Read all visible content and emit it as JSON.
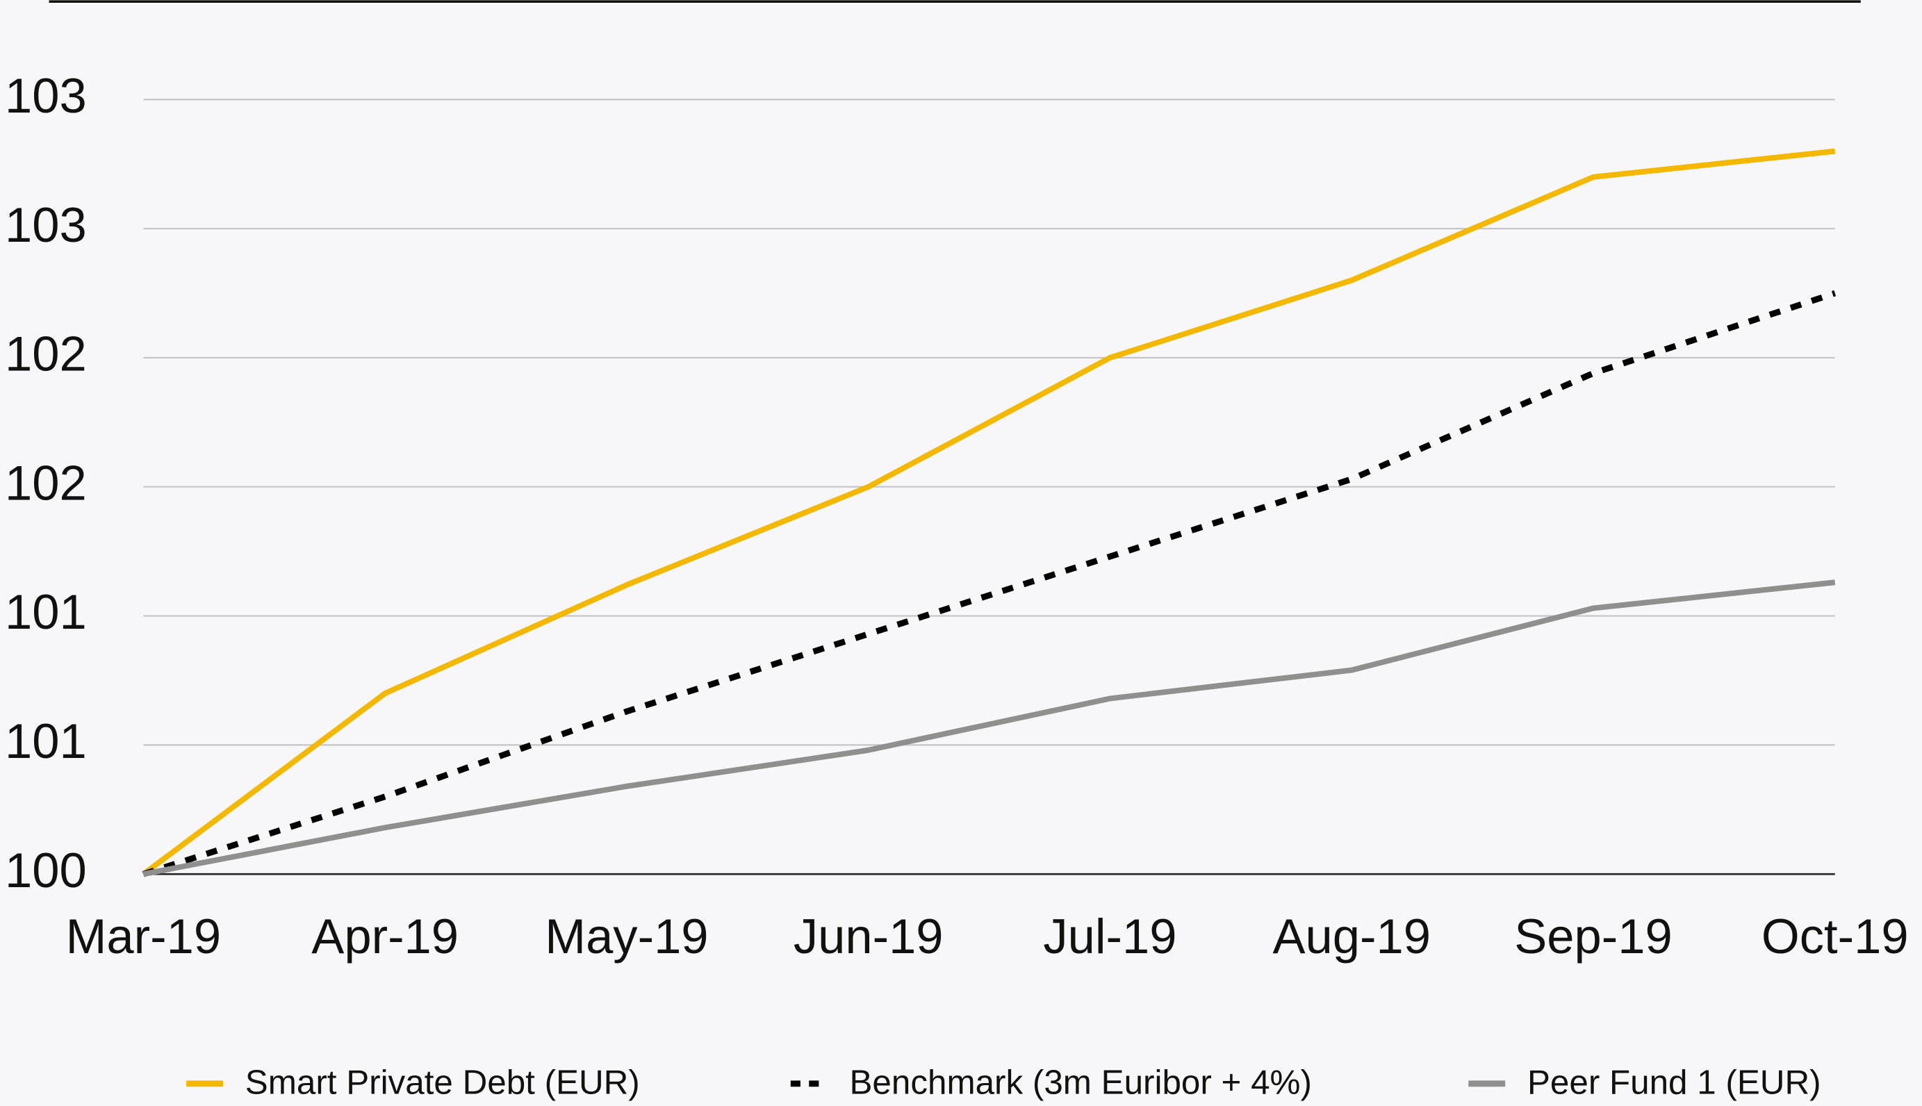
{
  "chart_data": {
    "type": "line",
    "categories": [
      "Mar-19",
      "Apr-19",
      "May-19",
      "Jun-19",
      "Jul-19",
      "Aug-19",
      "Sep-19",
      "Oct-19"
    ],
    "series": [
      {
        "name": "Smart Private Debt (EUR)",
        "color": "#f5b800",
        "dash": false,
        "values": [
          100,
          100.7,
          101.12,
          101.5,
          102.0,
          102.3,
          102.7,
          102.8
        ]
      },
      {
        "name": "Benchmark (3m Euribor + 4%)",
        "color": "#000000",
        "dash": true,
        "values": [
          100,
          100.3,
          100.63,
          100.93,
          101.23,
          101.53,
          101.94,
          102.25
        ]
      },
      {
        "name": "Peer Fund 1 (EUR)",
        "color": "#8f8f8f",
        "dash": false,
        "values": [
          100,
          100.18,
          100.34,
          100.48,
          100.68,
          100.79,
          101.03,
          101.13
        ]
      }
    ],
    "ylim": [
      100,
      103
    ],
    "yticks": [
      100,
      {
        "value": 100.5,
        "label": "101"
      },
      101,
      {
        "value": 101.5,
        "label": "102"
      },
      102,
      {
        "value": 102.5,
        "label": "103"
      },
      103
    ],
    "grid": true,
    "legend": "bottom"
  }
}
